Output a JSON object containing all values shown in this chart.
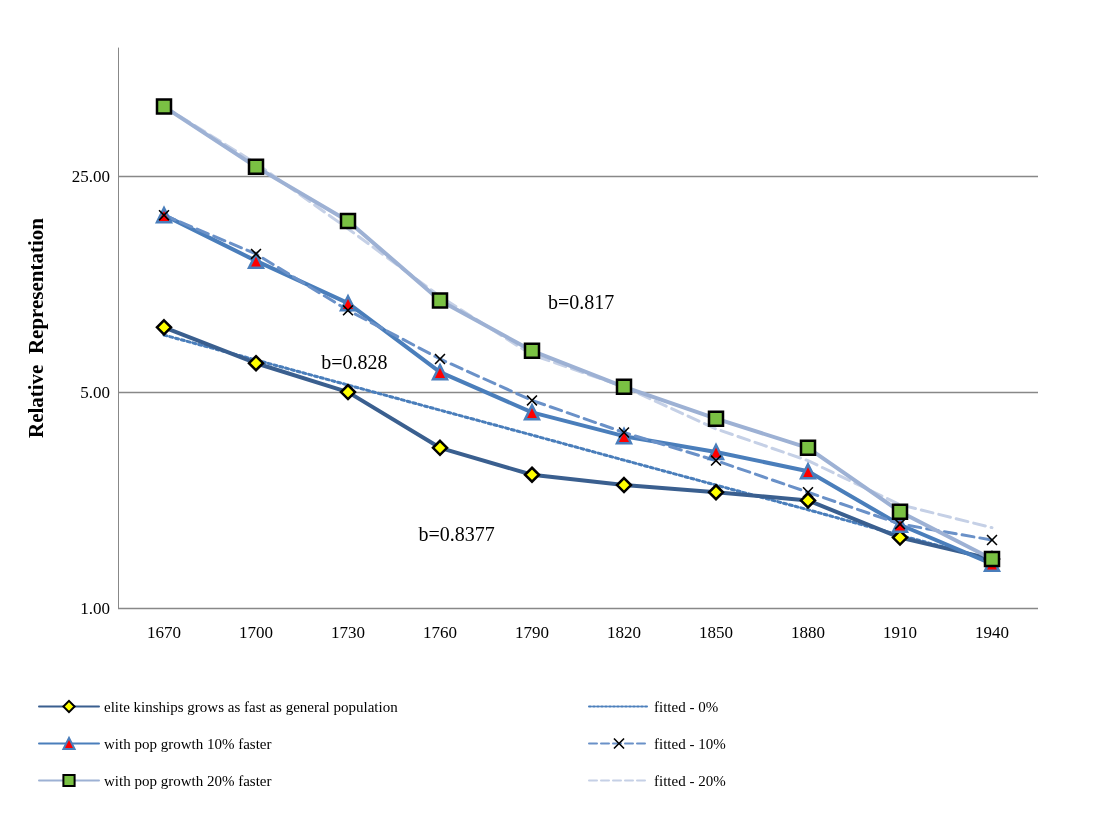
{
  "chart_data": {
    "type": "line",
    "ylabel": "Relative  Representation",
    "log": "y",
    "ylim": [
      1,
      65
    ],
    "yticks": [
      {
        "value": 1,
        "label": "1.00"
      },
      {
        "value": 5,
        "label": "5.00"
      },
      {
        "value": 25,
        "label": "25.00"
      }
    ],
    "grid": "y",
    "legend": "bottom",
    "categories": [
      "1670",
      "1700",
      "1730",
      "1760",
      "1790",
      "1820",
      "1850",
      "1880",
      "1910",
      "1940"
    ],
    "series": [
      {
        "name": "elite kinships grows as fast as general population",
        "color": "#3a5f8f",
        "marker": "diamond",
        "line_style": "solid",
        "colors": [
          "#ffff00",
          "#ffff00",
          "#ffff00",
          "#ffff00",
          "#ffff00",
          "#ffff00",
          "#ffff00",
          "#ffff00",
          "#ffff00",
          "#ffff00"
        ],
        "values": [
          8.1,
          6.2,
          5.0,
          3.3,
          2.7,
          2.5,
          2.37,
          2.23,
          1.69,
          1.44
        ]
      },
      {
        "name": "fitted - 0%",
        "color": "#4a7ebb",
        "marker": "none",
        "line_style": "dotted",
        "values": [
          7.65,
          6.35,
          5.27,
          4.37,
          3.63,
          3.01,
          2.5,
          2.08,
          1.72,
          1.43
        ]
      },
      {
        "name": "with pop growth 10% faster",
        "color": "#4a7ebb",
        "marker": "triangle",
        "line_style": "solid",
        "colors": [
          "#ff0000",
          "#ff0000",
          "#ff0000",
          "#ff0000",
          "#ff0000",
          "#ff0000",
          "#ff0000",
          "#ff0000",
          "#ff0000",
          "#ff0000"
        ],
        "values": [
          18.7,
          13.3,
          9.7,
          5.8,
          4.3,
          3.6,
          3.2,
          2.77,
          1.86,
          1.39
        ]
      },
      {
        "name": "fitted - 10%",
        "color": "#6a91c8",
        "marker": "cross",
        "line_style": "dashed",
        "colors": [
          "#000000",
          "#000000",
          "#000000",
          "#000000",
          "#000000",
          "#000000",
          "#000000",
          "#000000",
          "#000000",
          "#000000"
        ],
        "values": [
          18.7,
          14.0,
          9.2,
          6.4,
          4.7,
          3.7,
          3.0,
          2.37,
          1.87,
          1.66
        ]
      },
      {
        "name": "with pop growth 20% faster",
        "color": "#9db1d4",
        "marker": "square",
        "line_style": "solid",
        "colors": [
          "#7ac143",
          "#7ac143",
          "#7ac143",
          "#7ac143",
          "#7ac143",
          "#7ac143",
          "#7ac143",
          "#7ac143",
          "#7ac143",
          "#7ac143"
        ],
        "values": [
          42,
          26.8,
          17.9,
          9.9,
          6.8,
          5.2,
          4.1,
          3.3,
          2.05,
          1.44
        ]
      },
      {
        "name": "fitted - 20%",
        "color": "#c5d0e6",
        "marker": "none",
        "line_style": "dashed",
        "values": [
          42,
          27.5,
          16.9,
          10.2,
          6.6,
          5.2,
          3.8,
          3.0,
          2.16,
          1.82
        ]
      }
    ],
    "annotations": [
      "b=0.817",
      "b=0.828",
      "b=0.8377"
    ]
  }
}
